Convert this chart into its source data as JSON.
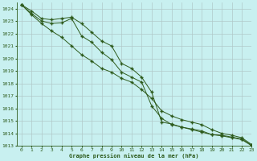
{
  "title": "Graphe pression niveau de la mer (hPa)",
  "background_color": "#c8f0f0",
  "grid_color": "#b0c8c8",
  "line_color": "#2d5a1b",
  "xlim": [
    -0.5,
    23
  ],
  "ylim": [
    1013,
    1024.5
  ],
  "yticks": [
    1013,
    1014,
    1015,
    1016,
    1017,
    1018,
    1019,
    1020,
    1021,
    1022,
    1023,
    1024
  ],
  "xticks": [
    0,
    1,
    2,
    3,
    4,
    5,
    6,
    7,
    8,
    9,
    10,
    11,
    12,
    13,
    14,
    15,
    16,
    17,
    18,
    19,
    20,
    21,
    22,
    23
  ],
  "series1_x": [
    0,
    1,
    2,
    3,
    4,
    5,
    6,
    7,
    8,
    9,
    10,
    11,
    12,
    13,
    14,
    15,
    16,
    17,
    18,
    19,
    20,
    21,
    22,
    23
  ],
  "series1_y": [
    1024.3,
    1023.8,
    1023.2,
    1023.1,
    1023.2,
    1023.3,
    1022.8,
    1022.1,
    1021.4,
    1021.0,
    1019.6,
    1019.2,
    1018.5,
    1017.3,
    1014.9,
    1014.75,
    1014.5,
    1014.35,
    1014.2,
    1013.9,
    1013.85,
    1013.7,
    1013.55,
    1013.05
  ],
  "series2_x": [
    0,
    1,
    2,
    3,
    4,
    5,
    6,
    7,
    8,
    9,
    10,
    11,
    12,
    13,
    14,
    15,
    16,
    17,
    18,
    19,
    20,
    21,
    22,
    23
  ],
  "series2_y": [
    1024.3,
    1023.6,
    1023.0,
    1022.8,
    1022.85,
    1023.2,
    1021.8,
    1021.3,
    1020.5,
    1019.9,
    1018.9,
    1018.5,
    1018.1,
    1016.2,
    1015.2,
    1014.7,
    1014.5,
    1014.3,
    1014.1,
    1013.9,
    1013.8,
    1013.65,
    1013.5,
    1013.0
  ],
  "series3_x": [
    0,
    1,
    2,
    3,
    4,
    5,
    6,
    7,
    8,
    9,
    10,
    11,
    12,
    13,
    14,
    15,
    16,
    17,
    18,
    19,
    20,
    21,
    22,
    23
  ],
  "series3_y": [
    1024.3,
    1023.5,
    1022.8,
    1022.2,
    1021.7,
    1021.0,
    1020.3,
    1019.8,
    1019.2,
    1018.9,
    1018.4,
    1018.1,
    1017.5,
    1016.8,
    1015.8,
    1015.4,
    1015.1,
    1014.9,
    1014.7,
    1014.3,
    1014.0,
    1013.85,
    1013.65,
    1013.1
  ]
}
